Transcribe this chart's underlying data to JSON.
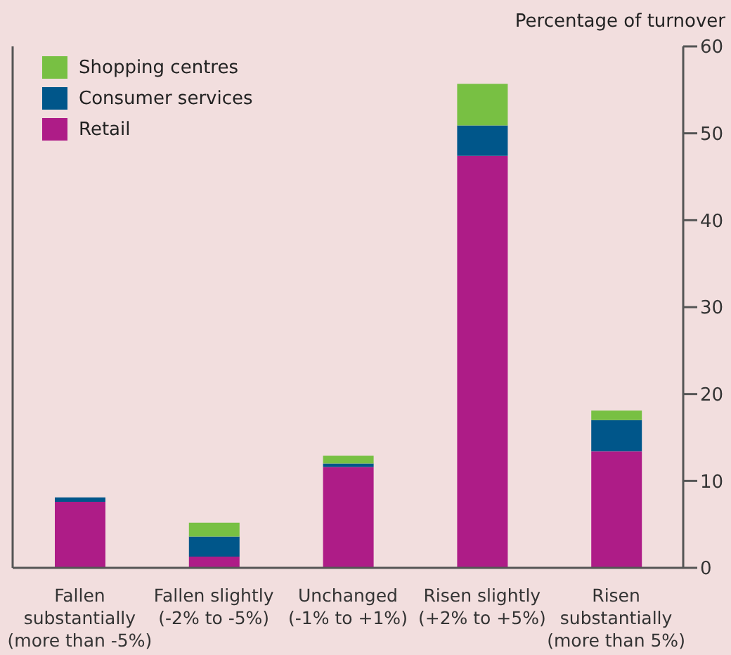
{
  "chart_data": {
    "type": "bar",
    "stacked": true,
    "ylabel": "Percentage of turnover",
    "categories": [
      "Fallen substantially (more than -5%)",
      "Fallen slightly (-2% to -5%)",
      "Unchanged (-1% to +1%)",
      "Risen slightly (+2% to +5%)",
      "Risen substantially (more than 5%)"
    ],
    "series": [
      {
        "name": "Retail",
        "color": "#ae1c87",
        "values": [
          7.6,
          1.3,
          11.6,
          47.4,
          13.4
        ]
      },
      {
        "name": "Consumer services",
        "color": "#00568a",
        "values": [
          0.5,
          2.3,
          0.4,
          3.5,
          3.6
        ]
      },
      {
        "name": "Shopping centres",
        "color": "#78c043",
        "values": [
          0,
          1.6,
          0.9,
          4.8,
          1.1
        ]
      }
    ],
    "ylim": [
      0,
      60
    ],
    "yticks": [
      0,
      10,
      20,
      30,
      40,
      50,
      60
    ],
    "grid": false,
    "legend": "top left"
  }
}
